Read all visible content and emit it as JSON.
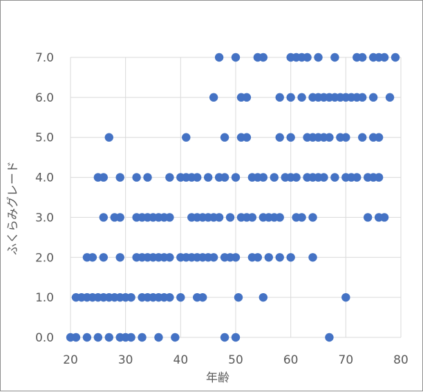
{
  "chart_data": {
    "type": "scatter",
    "title": "",
    "xlabel": "年齢",
    "ylabel": "ふくらみグレード",
    "xlim": [
      20,
      80
    ],
    "ylim": [
      0,
      7
    ],
    "xticks": [
      "20",
      "30",
      "40",
      "50",
      "60",
      "70",
      "80"
    ],
    "yticks": [
      "0.0",
      "1.0",
      "2.0",
      "3.0",
      "4.0",
      "5.0",
      "6.0",
      "7.0"
    ],
    "grid": true,
    "legend": "none",
    "marker_color": "#4472C4",
    "series": [
      {
        "points": [
          [
            20,
            0
          ],
          [
            21,
            0
          ],
          [
            23,
            0
          ],
          [
            25,
            0
          ],
          [
            27,
            0
          ],
          [
            29,
            0
          ],
          [
            30,
            0
          ],
          [
            31,
            0
          ],
          [
            33,
            0
          ],
          [
            36,
            0
          ],
          [
            39,
            0
          ],
          [
            48,
            0
          ],
          [
            50,
            0
          ],
          [
            67,
            0
          ],
          [
            21,
            1
          ],
          [
            22,
            1
          ],
          [
            23,
            1
          ],
          [
            24,
            1
          ],
          [
            25,
            1
          ],
          [
            26,
            1
          ],
          [
            27,
            1
          ],
          [
            28,
            1
          ],
          [
            29,
            1
          ],
          [
            30,
            1
          ],
          [
            31,
            1
          ],
          [
            33,
            1
          ],
          [
            34,
            1
          ],
          [
            35,
            1
          ],
          [
            36,
            1
          ],
          [
            37,
            1
          ],
          [
            38,
            1
          ],
          [
            40,
            1
          ],
          [
            43,
            1
          ],
          [
            44,
            1
          ],
          [
            50.5,
            1
          ],
          [
            55,
            1
          ],
          [
            70,
            1
          ],
          [
            23,
            2
          ],
          [
            24,
            2
          ],
          [
            26,
            2
          ],
          [
            29,
            2
          ],
          [
            32,
            2
          ],
          [
            33,
            2
          ],
          [
            34,
            2
          ],
          [
            35,
            2
          ],
          [
            36,
            2
          ],
          [
            37,
            2
          ],
          [
            38,
            2
          ],
          [
            40,
            2
          ],
          [
            41,
            2
          ],
          [
            42,
            2
          ],
          [
            43,
            2
          ],
          [
            44,
            2
          ],
          [
            45,
            2
          ],
          [
            46,
            2
          ],
          [
            48,
            2
          ],
          [
            49,
            2
          ],
          [
            50,
            2
          ],
          [
            53,
            2
          ],
          [
            54,
            2
          ],
          [
            56,
            2
          ],
          [
            58,
            2
          ],
          [
            60,
            2
          ],
          [
            64,
            2
          ],
          [
            26,
            3
          ],
          [
            28,
            3
          ],
          [
            29,
            3
          ],
          [
            32,
            3
          ],
          [
            33,
            3
          ],
          [
            34,
            3
          ],
          [
            35,
            3
          ],
          [
            36,
            3
          ],
          [
            37,
            3
          ],
          [
            38,
            3
          ],
          [
            42,
            3
          ],
          [
            43,
            3
          ],
          [
            44,
            3
          ],
          [
            45,
            3
          ],
          [
            46,
            3
          ],
          [
            47,
            3
          ],
          [
            49,
            3
          ],
          [
            51,
            3
          ],
          [
            52,
            3
          ],
          [
            53,
            3
          ],
          [
            55,
            3
          ],
          [
            56,
            3
          ],
          [
            57,
            3
          ],
          [
            58,
            3
          ],
          [
            61,
            3
          ],
          [
            62,
            3
          ],
          [
            64,
            3
          ],
          [
            74,
            3
          ],
          [
            76,
            3
          ],
          [
            77,
            3
          ],
          [
            25,
            4
          ],
          [
            26,
            4
          ],
          [
            29,
            4
          ],
          [
            32,
            4
          ],
          [
            34,
            4
          ],
          [
            38,
            4
          ],
          [
            40,
            4
          ],
          [
            41,
            4
          ],
          [
            42,
            4
          ],
          [
            43,
            4
          ],
          [
            45,
            4
          ],
          [
            47,
            4
          ],
          [
            48,
            4
          ],
          [
            50,
            4
          ],
          [
            53,
            4
          ],
          [
            54,
            4
          ],
          [
            55,
            4
          ],
          [
            57,
            4
          ],
          [
            59,
            4
          ],
          [
            60,
            4
          ],
          [
            61,
            4
          ],
          [
            63,
            4
          ],
          [
            64,
            4
          ],
          [
            65,
            4
          ],
          [
            66,
            4
          ],
          [
            68,
            4
          ],
          [
            70,
            4
          ],
          [
            71,
            4
          ],
          [
            72,
            4
          ],
          [
            74,
            4
          ],
          [
            75,
            4
          ],
          [
            76,
            4
          ],
          [
            27,
            5
          ],
          [
            41,
            5
          ],
          [
            48,
            5
          ],
          [
            51,
            5
          ],
          [
            52,
            5
          ],
          [
            58,
            5
          ],
          [
            60,
            5
          ],
          [
            63,
            5
          ],
          [
            64,
            5
          ],
          [
            65,
            5
          ],
          [
            66,
            5
          ],
          [
            67,
            5
          ],
          [
            69,
            5
          ],
          [
            70,
            5
          ],
          [
            73,
            5
          ],
          [
            75,
            5
          ],
          [
            76,
            5
          ],
          [
            46,
            6
          ],
          [
            51,
            6
          ],
          [
            52,
            6
          ],
          [
            58,
            6
          ],
          [
            60,
            6
          ],
          [
            62,
            6
          ],
          [
            64,
            6
          ],
          [
            65,
            6
          ],
          [
            66,
            6
          ],
          [
            67,
            6
          ],
          [
            68,
            6
          ],
          [
            69,
            6
          ],
          [
            70,
            6
          ],
          [
            71,
            6
          ],
          [
            72,
            6
          ],
          [
            73,
            6
          ],
          [
            75,
            6
          ],
          [
            78,
            6
          ],
          [
            47,
            7
          ],
          [
            50,
            7
          ],
          [
            54,
            7
          ],
          [
            55,
            7
          ],
          [
            60,
            7
          ],
          [
            61,
            7
          ],
          [
            62,
            7
          ],
          [
            63,
            7
          ],
          [
            65,
            7
          ],
          [
            68,
            7
          ],
          [
            72,
            7
          ],
          [
            73,
            7
          ],
          [
            75,
            7
          ],
          [
            76,
            7
          ],
          [
            77,
            7
          ],
          [
            79,
            7
          ]
        ]
      }
    ]
  }
}
